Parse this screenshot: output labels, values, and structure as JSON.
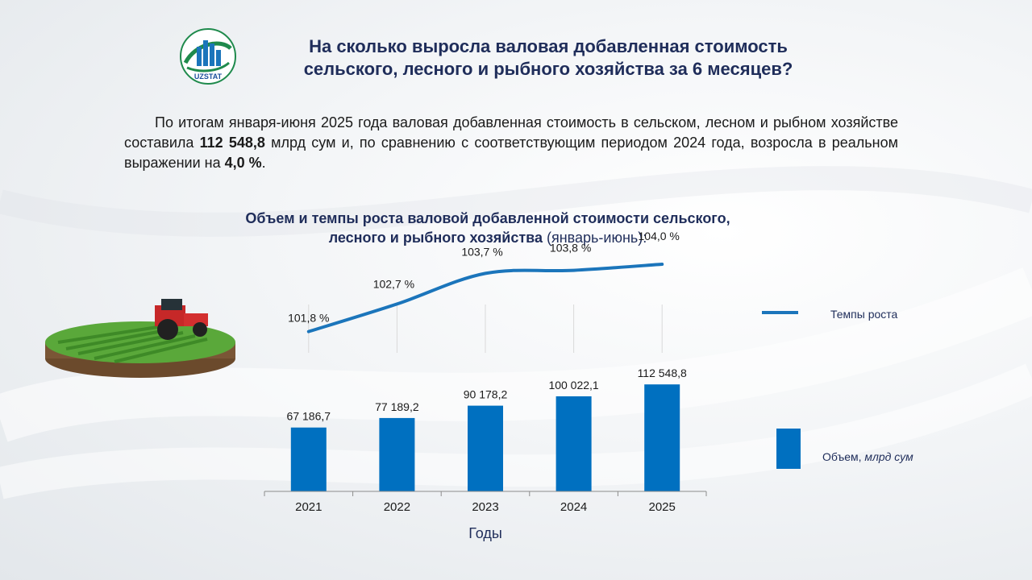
{
  "header": {
    "logo_text": "UZSTAT",
    "title_line1": "На сколько выросла валовая добавленная стоимость",
    "title_line2": "сельского, лесного и рыбного хозяйства за 6 месяцев?"
  },
  "intro": {
    "part1": "По итогам января-июня 2025 года валовая добавленная стоимость в сельском, лесном и рыбном хозяйстве составила ",
    "value": "112 548,8",
    "part2": " млрд сум и, по сравнению с соответствующим периодом 2024 года, возросла в реальном выражении на ",
    "growth": "4,0 %",
    "part3": "."
  },
  "colors": {
    "bar": "#0070c0",
    "line": "#1b75bb",
    "title": "#1f2d5a"
  },
  "chart_data": {
    "type": "bar+line",
    "title_bold": "Объем и темпы роста валовой добавленной стоимости сельского, лесного и рыбного хозяйства",
    "title_normal": " (январь-июнь):",
    "xlabel": "Годы",
    "categories": [
      "2021",
      "2022",
      "2023",
      "2024",
      "2025"
    ],
    "series": [
      {
        "name": "Объем, ",
        "name_italic": "млрд сум",
        "type": "bar",
        "values": [
          67186.7,
          77189.2,
          90178.2,
          100022.1,
          112548.8
        ],
        "labels": [
          "67 186,7",
          "77 189,2",
          "90 178,2",
          "100 022,1",
          "112 548,8"
        ]
      },
      {
        "name": "Темпы роста",
        "type": "line",
        "values": [
          101.8,
          102.7,
          103.7,
          103.8,
          104.0
        ],
        "labels": [
          "101,8 %",
          "102,7 %",
          "103,7 %",
          "103,8 %",
          "104,0 %"
        ]
      }
    ]
  }
}
